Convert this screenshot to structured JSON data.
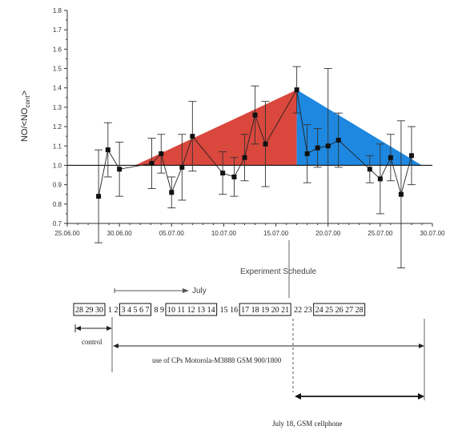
{
  "chart_data": {
    "type": "scatter",
    "title": "",
    "xlabel": "",
    "ylabel": "NO/<NO_cont>",
    "ylabel_main": "NO/<NO",
    "ylabel_sub": "cont",
    "ylabel_end": ">",
    "x_ticks": [
      "25.06.00",
      "30.06.00",
      "05.07.00",
      "10.07.00",
      "15.07.00",
      "20.07.00",
      "25.07.00",
      "30.07.00"
    ],
    "y_ticks": [
      "0.7",
      "0.8",
      "0.9",
      "1.0",
      "1.1",
      "1.2",
      "1.3",
      "1.4",
      "1.5",
      "1.6",
      "1.7",
      "1.8"
    ],
    "xlim_days": [
      25,
      60
    ],
    "ylim": [
      0.7,
      1.8
    ],
    "baseline": 1.0,
    "points": [
      {
        "day": 28.0,
        "y": 0.84,
        "err": 0.24
      },
      {
        "day": 28.9,
        "y": 1.08,
        "err": 0.14
      },
      {
        "day": 30.0,
        "y": 0.98,
        "err": 0.14
      },
      {
        "day": 33.1,
        "y": 1.01,
        "err": 0.13
      },
      {
        "day": 34.0,
        "y": 1.06,
        "err": 0.1
      },
      {
        "day": 35.0,
        "y": 0.86,
        "err": 0.08
      },
      {
        "day": 36.0,
        "y": 0.99,
        "err": 0.17
      },
      {
        "day": 37.0,
        "y": 1.15,
        "err": 0.18
      },
      {
        "day": 39.9,
        "y": 0.96,
        "err": 0.11
      },
      {
        "day": 41.0,
        "y": 0.94,
        "err": 0.1
      },
      {
        "day": 42.0,
        "y": 1.04,
        "err": 0.12
      },
      {
        "day": 43.0,
        "y": 1.26,
        "err": 0.15
      },
      {
        "day": 44.0,
        "y": 1.11,
        "err": 0.22
      },
      {
        "day": 47.0,
        "y": 1.39,
        "err": 0.12
      },
      {
        "day": 48.0,
        "y": 1.06,
        "err": 0.15
      },
      {
        "day": 49.0,
        "y": 1.09,
        "err": 0.1
      },
      {
        "day": 50.0,
        "y": 1.1,
        "err": 0.4
      },
      {
        "day": 51.0,
        "y": 1.13,
        "err": 0.14
      },
      {
        "day": 54.0,
        "y": 0.98,
        "err": 0.07
      },
      {
        "day": 55.0,
        "y": 0.93,
        "err": 0.18
      },
      {
        "day": 56.0,
        "y": 1.04,
        "err": 0.12
      },
      {
        "day": 57.0,
        "y": 0.85,
        "err": 0.38
      },
      {
        "day": 58.0,
        "y": 1.05,
        "err": 0.15
      }
    ],
    "triangles": [
      {
        "color": "#d9473d",
        "points": [
          [
            31.5,
            1.0
          ],
          [
            47.0,
            1.39
          ],
          [
            47.0,
            1.0
          ]
        ]
      },
      {
        "color": "#1e88e0",
        "points": [
          [
            47.0,
            1.0
          ],
          [
            47.0,
            1.39
          ],
          [
            59.0,
            1.0
          ]
        ]
      }
    ],
    "grid": false,
    "legend": "none"
  },
  "schedule": {
    "title": "Experiment Schedule",
    "month_label": "July",
    "days": [
      {
        "label": "28 29 30",
        "boxed": true
      },
      {
        "label": "1 2",
        "boxed": false
      },
      {
        "label": "3 4 5 6 7",
        "boxed": true
      },
      {
        "label": "8 9",
        "boxed": false
      },
      {
        "label": "10 11 12 13 14",
        "boxed": true
      },
      {
        "label": "15 16",
        "boxed": false
      },
      {
        "label": "17 18 19 20 21",
        "boxed": true
      },
      {
        "label": "22 23",
        "boxed": false
      },
      {
        "label": "24 25 26 27 28",
        "boxed": true
      }
    ],
    "control_label": "control",
    "exposure_label": "use of CPs Motorola-M3888 GSM 900/1800",
    "cellphone_label": "July 18, GSM cellphone"
  }
}
